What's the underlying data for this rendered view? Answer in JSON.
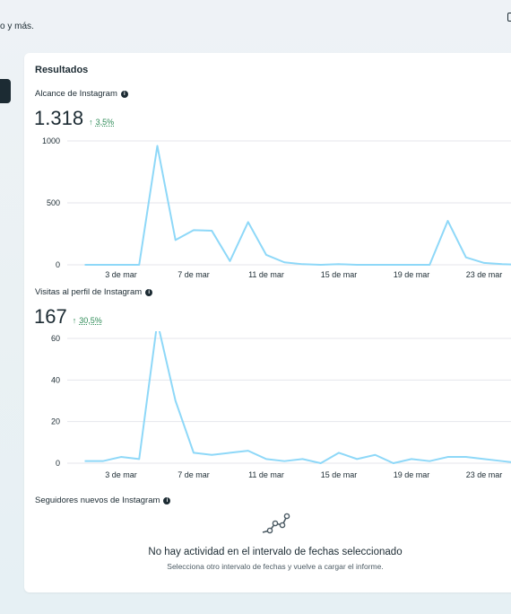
{
  "page": {
    "top_snippet": "o y más."
  },
  "card": {
    "title": "Resultados"
  },
  "metrics": [
    {
      "title": "Alcance de Instagram",
      "value": "1.318",
      "change": "3,5%",
      "change_arrow": "↑",
      "info_icon": "info-icon"
    },
    {
      "title": "Visitas al perfil de Instagram",
      "value": "167",
      "change": "30,5%",
      "change_arrow": "↑",
      "info_icon": "info-icon"
    },
    {
      "title": "Seguidores nuevos de Instagram",
      "info_icon": "info-icon"
    }
  ],
  "empty_state": {
    "icon": "trend-line-icon",
    "title": "No hay actividad en el intervalo de fechas seleccionado",
    "subtitle": "Selecciona otro intervalo de fechas y vuelve a cargar el informe."
  },
  "colors": {
    "line": "#8ed8f8",
    "grid": "#e4e6eb",
    "positive": "#2e8b57",
    "text": "#1c2b33"
  },
  "chart_data": [
    {
      "type": "line",
      "title": "",
      "x_tick_labels": [
        "3 de mar",
        "7 de mar",
        "11 de mar",
        "15 de mar",
        "19 de mar",
        "23 de mar"
      ],
      "x_ticks_day": [
        3,
        7,
        11,
        15,
        19,
        23
      ],
      "x_days": [
        1,
        2,
        3,
        4,
        5,
        6,
        7,
        8,
        9,
        10,
        11,
        12,
        13,
        14,
        15,
        16,
        17,
        18,
        19,
        20,
        21,
        22,
        23,
        24,
        25
      ],
      "series": [
        {
          "values": [
            0,
            0,
            0,
            0,
            960,
            200,
            280,
            275,
            30,
            345,
            80,
            20,
            5,
            0,
            5,
            0,
            0,
            0,
            0,
            0,
            355,
            60,
            15,
            5,
            0
          ]
        }
      ],
      "y_ticks": [
        0,
        500,
        1000
      ],
      "ylim": [
        0,
        1000
      ],
      "grid": true
    },
    {
      "type": "line",
      "title": "",
      "x_tick_labels": [
        "3 de mar",
        "7 de mar",
        "11 de mar",
        "15 de mar",
        "19 de mar",
        "23 de mar"
      ],
      "x_ticks_day": [
        3,
        7,
        11,
        15,
        19,
        23
      ],
      "x_days": [
        1,
        2,
        3,
        4,
        5,
        6,
        7,
        8,
        9,
        10,
        11,
        12,
        13,
        14,
        15,
        16,
        17,
        18,
        19,
        20,
        21,
        22,
        23,
        24,
        25
      ],
      "series": [
        {
          "values": [
            1,
            1,
            3,
            2,
            68,
            30,
            5,
            4,
            5,
            6,
            2,
            1,
            2,
            0,
            5,
            2,
            4,
            0,
            2,
            1,
            3,
            3,
            2,
            1,
            0
          ]
        }
      ],
      "y_ticks": [
        0,
        20,
        40,
        60
      ],
      "ylim": [
        0,
        60
      ],
      "grid": true
    }
  ]
}
